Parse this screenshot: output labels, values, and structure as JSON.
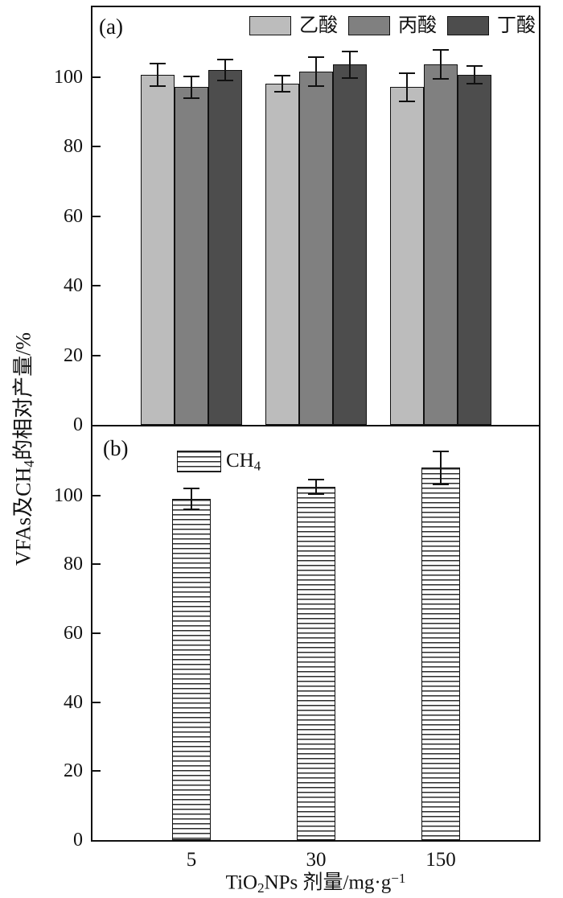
{
  "y_axis_label": "VFAs及CH4的相对产量/%",
  "y_axis_label_rich": [
    {
      "t": "VFAs及CH"
    },
    {
      "t": "4",
      "sub": true
    },
    {
      "t": "的相对产量/%"
    }
  ],
  "x_axis_label": "TiO2NPs 剂量/mg·g-1",
  "x_axis_label_rich": [
    {
      "t": "TiO"
    },
    {
      "t": "2",
      "sub": true
    },
    {
      "t": "NPs 剂量/mg·g"
    },
    {
      "t": "−1",
      "sup": true
    }
  ],
  "ink_color": "#111111",
  "chart_data": [
    {
      "type": "bar",
      "panel_label": "(a)",
      "categories": [
        "5",
        "30",
        "150"
      ],
      "series": [
        {
          "name": "乙酸",
          "color": "#bcbcbc",
          "values": [
            100.5,
            98,
            97
          ],
          "errors": [
            3.5,
            2.5,
            4.2
          ]
        },
        {
          "name": "丙酸",
          "color": "#808080",
          "values": [
            97,
            101.5,
            103.5
          ],
          "errors": [
            3.3,
            4.5,
            4.4
          ]
        },
        {
          "name": "丁酸",
          "color": "#4d4d4d",
          "values": [
            102,
            103.5,
            100.5
          ],
          "errors": [
            3.2,
            4.0,
            2.8
          ]
        }
      ],
      "ylim": [
        0,
        120
      ],
      "yticks": [
        0,
        20,
        40,
        60,
        80,
        100
      ],
      "grid": false,
      "legend_position": "top-inside"
    },
    {
      "type": "bar",
      "panel_label": "(b)",
      "categories": [
        "5",
        "30",
        "150"
      ],
      "series": [
        {
          "name": "CH4",
          "name_rich": [
            {
              "t": "CH"
            },
            {
              "t": "4",
              "sub": true
            }
          ],
          "fill": "horizontal-hatch",
          "values": [
            99,
            102.5,
            108
          ],
          "errors": [
            3.3,
            2.3,
            5.0
          ]
        }
      ],
      "ylim": [
        0,
        120
      ],
      "yticks": [
        0,
        20,
        40,
        60,
        80,
        100
      ],
      "grid": false,
      "legend_position": "upper-left-inside"
    }
  ]
}
